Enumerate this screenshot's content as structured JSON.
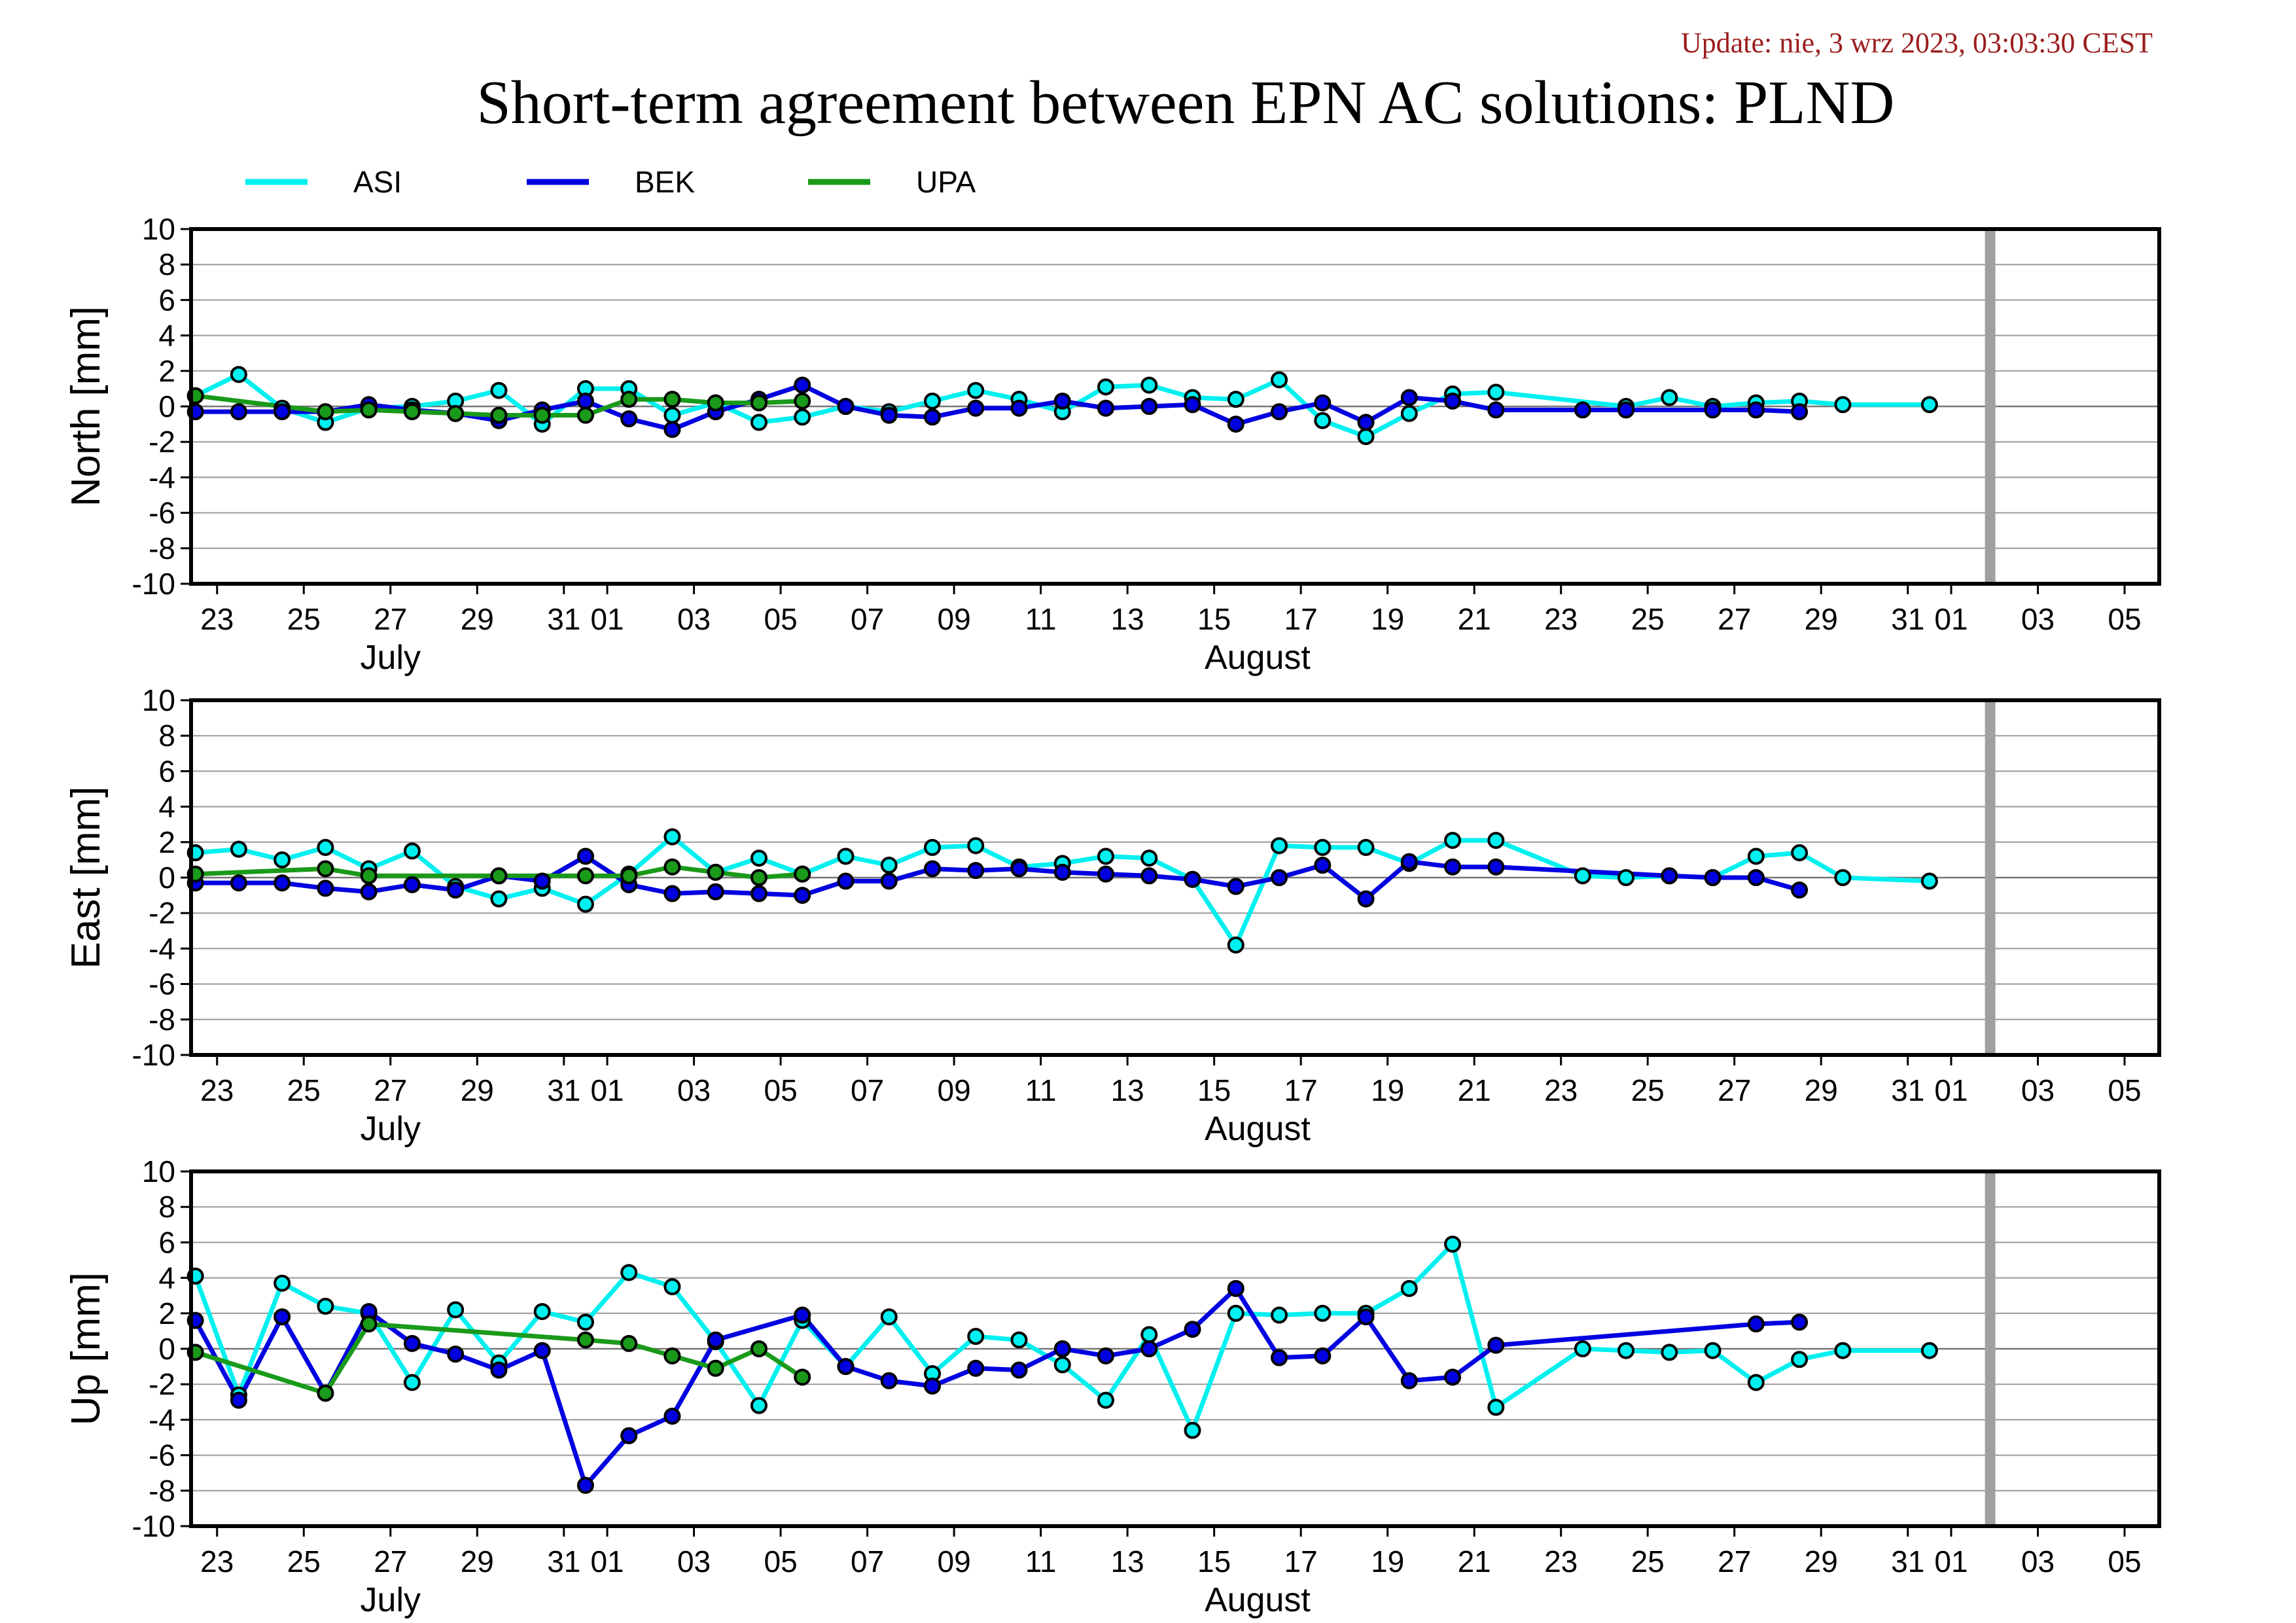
{
  "update_text": "Update: nie, 3 wrz 2023, 03:03:30 CEST",
  "title": "Short-term agreement between EPN AC solutions: PLND",
  "legend": [
    {
      "name": "ASI",
      "color": "#00f0f0"
    },
    {
      "name": "BEK",
      "color": "#0000e0"
    },
    {
      "name": "UPA",
      "color": "#1a9a1a"
    }
  ],
  "chart_data": {
    "type": "line",
    "x_axis": {
      "start_day": 22.4,
      "end_day": 67.8,
      "tick_labels": [
        "23",
        "25",
        "27",
        "29",
        "31",
        "01",
        "03",
        "05",
        "07",
        "09",
        "11",
        "13",
        "15",
        "17",
        "19",
        "21",
        "23",
        "25",
        "27",
        "29",
        "31",
        "01",
        "03",
        "05"
      ],
      "tick_days": [
        23,
        25,
        27,
        29,
        31,
        32,
        34,
        36,
        38,
        40,
        42,
        44,
        46,
        48,
        50,
        52,
        54,
        56,
        58,
        60,
        62,
        63,
        65,
        67
      ],
      "months": [
        {
          "label": "July",
          "day": 27
        },
        {
          "label": "August",
          "day": 47
        }
      ],
      "marker_day": 63.9
    },
    "panels": [
      {
        "ylabel": "North [mm]",
        "ylim": [
          -10,
          10
        ],
        "yticks": [
          "10",
          "8",
          "6",
          "4",
          "2",
          "0",
          "-2",
          "-4",
          "-6",
          "-8",
          "-10"
        ],
        "series": [
          {
            "name": "ASI",
            "x": [
              22.5,
              23.5,
              24.5,
              25.5,
              26.5,
              27.5,
              28.5,
              29.5,
              30.5,
              31.5,
              32.5,
              33.5,
              34.5,
              35.5,
              36.5,
              37.5,
              38.5,
              39.5,
              40.5,
              41.5,
              42.5,
              43.5,
              44.5,
              45.5,
              46.5,
              47.5,
              48.5,
              49.5,
              50.5,
              51.5,
              52.5,
              55.5,
              56.5,
              57.5,
              58.5,
              59.5,
              60.5,
              62.5
            ],
            "y": [
              0.6,
              1.8,
              -0.1,
              -0.9,
              -0.1,
              0.0,
              0.3,
              0.9,
              -1.0,
              1.0,
              1.0,
              -0.5,
              0.2,
              -0.9,
              -0.6,
              0.0,
              -0.3,
              0.3,
              0.9,
              0.4,
              -0.3,
              1.1,
              1.2,
              0.5,
              0.4,
              1.5,
              -0.8,
              -1.7,
              -0.4,
              0.7,
              0.8,
              0.0,
              0.5,
              0.0,
              0.2,
              0.3,
              0.1,
              0.1
            ]
          },
          {
            "name": "BEK",
            "x": [
              22.5,
              23.5,
              24.5,
              25.5,
              26.5,
              27.5,
              28.5,
              29.5,
              30.5,
              31.5,
              32.5,
              33.5,
              34.5,
              35.5,
              36.5,
              37.5,
              38.5,
              39.5,
              40.5,
              41.5,
              42.5,
              43.5,
              44.5,
              45.5,
              46.5,
              47.5,
              48.5,
              49.5,
              50.5,
              51.5,
              52.5,
              54.5,
              55.5,
              57.5,
              58.5,
              59.5
            ],
            "y": [
              -0.3,
              -0.3,
              -0.3,
              -0.3,
              0.1,
              -0.2,
              -0.4,
              -0.8,
              -0.2,
              0.3,
              -0.7,
              -1.3,
              -0.3,
              0.4,
              1.2,
              0.0,
              -0.5,
              -0.6,
              -0.1,
              -0.1,
              0.3,
              -0.1,
              0.0,
              0.1,
              -1.0,
              -0.3,
              0.2,
              -0.9,
              0.5,
              0.3,
              -0.2,
              -0.2,
              -0.2,
              -0.2,
              -0.2,
              -0.3
            ]
          },
          {
            "name": "UPA",
            "x": [
              22.5,
              25.5,
              26.5,
              27.5,
              28.5,
              29.5,
              30.5,
              31.5,
              32.5,
              33.5,
              34.5,
              35.5,
              36.5
            ],
            "y": [
              0.6,
              -0.3,
              -0.2,
              -0.3,
              -0.4,
              -0.5,
              -0.5,
              -0.5,
              0.4,
              0.4,
              0.2,
              0.2,
              0.3
            ]
          }
        ]
      },
      {
        "ylabel": "East [mm]",
        "ylim": [
          -10,
          10
        ],
        "yticks": [
          "10",
          "8",
          "6",
          "4",
          "2",
          "0",
          "-2",
          "-4",
          "-6",
          "-8",
          "-10"
        ],
        "series": [
          {
            "name": "ASI",
            "x": [
              22.5,
              23.5,
              24.5,
              25.5,
              26.5,
              27.5,
              28.5,
              29.5,
              30.5,
              31.5,
              32.5,
              33.5,
              34.5,
              35.5,
              36.5,
              37.5,
              38.5,
              39.5,
              40.5,
              41.5,
              42.5,
              43.5,
              44.5,
              45.5,
              46.5,
              47.5,
              48.5,
              49.5,
              50.5,
              51.5,
              52.5,
              54.5,
              55.5,
              56.5,
              57.5,
              58.5,
              59.5,
              60.5,
              62.5
            ],
            "y": [
              1.4,
              1.6,
              1.0,
              1.7,
              0.5,
              1.5,
              -0.5,
              -1.2,
              -0.6,
              -1.5,
              0.2,
              2.3,
              0.3,
              1.1,
              0.2,
              1.2,
              0.7,
              1.7,
              1.8,
              0.6,
              0.8,
              1.2,
              1.1,
              -0.1,
              -3.8,
              1.8,
              1.7,
              1.7,
              0.8,
              2.1,
              2.1,
              0.1,
              0.0,
              0.1,
              0.0,
              1.2,
              1.4,
              0.0,
              -0.2
            ]
          },
          {
            "name": "BEK",
            "x": [
              22.5,
              23.5,
              24.5,
              25.5,
              26.5,
              27.5,
              28.5,
              29.5,
              30.5,
              31.5,
              32.5,
              33.5,
              34.5,
              35.5,
              36.5,
              37.5,
              38.5,
              39.5,
              40.5,
              41.5,
              42.5,
              43.5,
              44.5,
              45.5,
              46.5,
              47.5,
              48.5,
              49.5,
              50.5,
              51.5,
              52.5,
              56.5,
              57.5,
              58.5,
              59.5
            ],
            "y": [
              -0.3,
              -0.3,
              -0.3,
              -0.6,
              -0.8,
              -0.4,
              -0.7,
              0.1,
              -0.2,
              1.2,
              -0.4,
              -0.9,
              -0.8,
              -0.9,
              -1.0,
              -0.2,
              -0.2,
              0.5,
              0.4,
              0.5,
              0.3,
              0.2,
              0.1,
              -0.1,
              -0.5,
              0.0,
              0.7,
              -1.2,
              0.9,
              0.6,
              0.6,
              0.1,
              0.0,
              0.0,
              -0.7
            ]
          },
          {
            "name": "UPA",
            "x": [
              22.5,
              25.5,
              26.5,
              29.5,
              31.5,
              32.5,
              33.5,
              34.5,
              35.5,
              36.5
            ],
            "y": [
              0.2,
              0.5,
              0.1,
              0.1,
              0.1,
              0.1,
              0.6,
              0.3,
              0.0,
              0.2
            ]
          }
        ]
      },
      {
        "ylabel": "Up [mm]",
        "ylim": [
          -10,
          10
        ],
        "yticks": [
          "10",
          "8",
          "6",
          "4",
          "2",
          "0",
          "-2",
          "-4",
          "-6",
          "-8",
          "-10"
        ],
        "series": [
          {
            "name": "ASI",
            "x": [
              22.5,
              23.5,
              24.5,
              25.5,
              26.5,
              27.5,
              28.5,
              29.5,
              30.5,
              31.5,
              32.5,
              33.5,
              34.5,
              35.5,
              36.5,
              37.5,
              38.5,
              39.5,
              40.5,
              41.5,
              42.5,
              43.5,
              44.5,
              45.5,
              46.5,
              47.5,
              48.5,
              49.5,
              50.5,
              51.5,
              52.5,
              54.5,
              55.5,
              56.5,
              57.5,
              58.5,
              59.5,
              60.5,
              62.5
            ],
            "y": [
              4.1,
              -2.6,
              3.7,
              2.4,
              2.0,
              -1.9,
              2.2,
              -0.8,
              2.1,
              1.5,
              4.3,
              3.5,
              0.4,
              -3.2,
              1.6,
              -1.0,
              1.8,
              -1.4,
              0.7,
              0.5,
              -0.9,
              -2.9,
              0.8,
              -4.6,
              2.0,
              1.9,
              2.0,
              2.0,
              3.4,
              5.9,
              -3.3,
              0.0,
              -0.1,
              -0.2,
              -0.1,
              -1.9,
              -0.6,
              -0.1,
              -0.1
            ]
          },
          {
            "name": "BEK",
            "x": [
              22.5,
              23.5,
              24.5,
              25.5,
              26.5,
              27.5,
              28.5,
              29.5,
              30.5,
              31.5,
              32.5,
              33.5,
              34.5,
              36.5,
              37.5,
              38.5,
              39.5,
              40.5,
              41.5,
              42.5,
              43.5,
              44.5,
              45.5,
              46.5,
              47.5,
              48.5,
              49.5,
              50.5,
              51.5,
              52.5,
              58.5,
              59.5
            ],
            "y": [
              1.6,
              -2.9,
              1.8,
              -2.5,
              2.1,
              0.3,
              -0.3,
              -1.2,
              -0.1,
              -7.7,
              -4.9,
              -3.8,
              0.5,
              1.9,
              -1.0,
              -1.8,
              -2.1,
              -1.1,
              -1.2,
              0.0,
              -0.4,
              0.0,
              1.1,
              3.4,
              -0.5,
              -0.4,
              1.8,
              -1.8,
              -1.6,
              0.2,
              1.4,
              1.5
            ]
          },
          {
            "name": "UPA",
            "x": [
              22.5,
              25.5,
              26.5,
              31.5,
              32.5,
              33.5,
              34.5,
              35.5,
              36.5
            ],
            "y": [
              -0.2,
              -2.5,
              1.4,
              0.5,
              0.3,
              -0.4,
              -1.1,
              0.0,
              -1.6
            ]
          }
        ]
      }
    ]
  }
}
